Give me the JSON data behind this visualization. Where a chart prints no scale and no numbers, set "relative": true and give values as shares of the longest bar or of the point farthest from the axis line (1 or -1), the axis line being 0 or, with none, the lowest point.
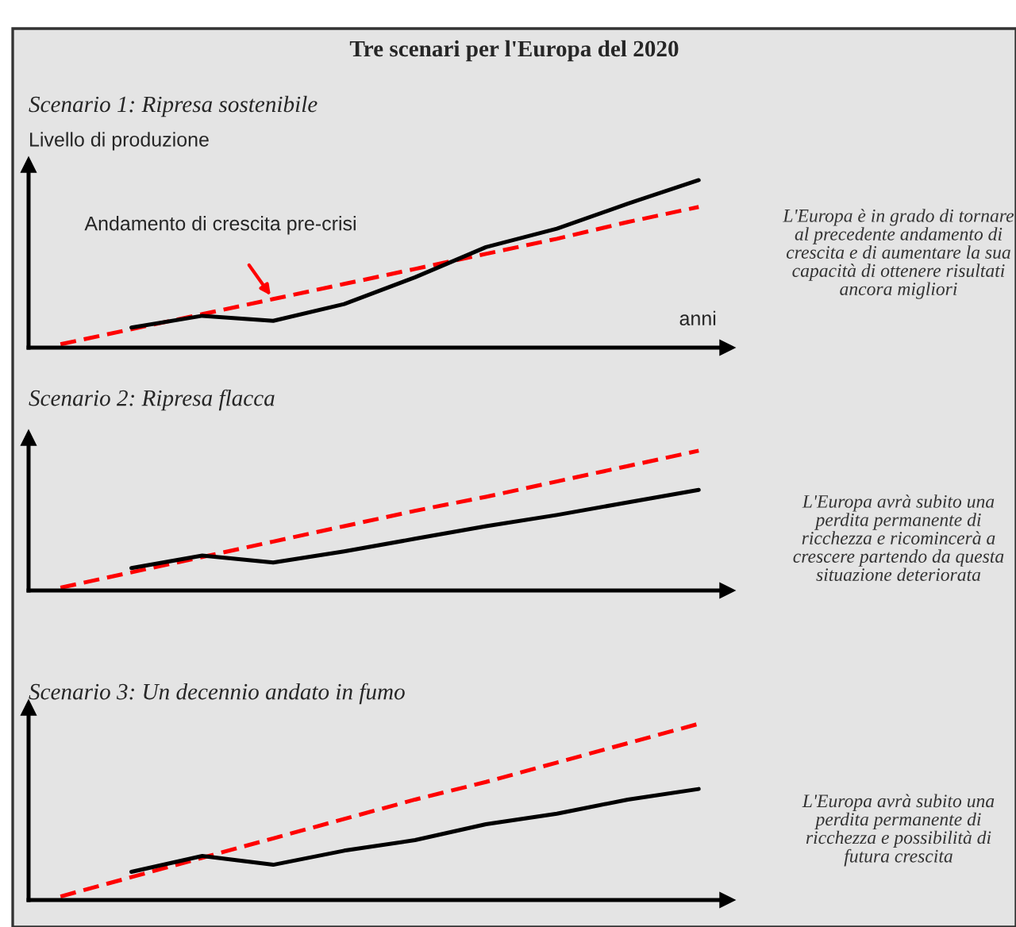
{
  "chart_data": [
    {
      "type": "line",
      "title": "Tre scenari per l'Europa del 2020",
      "subtitle": "Scenario 1: Ripresa sostenibile",
      "xlabel": "anni",
      "ylabel": "Livello di produzione",
      "relative": true,
      "legend": false,
      "grid": false,
      "marker": "none",
      "categories": [
        null,
        null,
        null,
        null,
        null,
        null,
        null,
        null,
        null,
        null
      ],
      "series": [
        {
          "color": "#ff0000",
          "line_style": "dashed",
          "values": [
            0.02,
            0.11,
            0.2,
            0.29,
            0.38,
            0.47,
            0.56,
            0.65,
            0.75,
            0.84
          ]
        },
        {
          "color": "#000000",
          "line_style": "solid",
          "values": [
            null,
            0.12,
            0.19,
            0.16,
            0.26,
            0.42,
            0.6,
            0.71,
            0.86,
            1.0
          ]
        }
      ],
      "annotations": [
        "Andamento di crescita pre-crisi",
        "L'Europa è in grado di tornare al precedente andamento di crescita e di aumentare la sua capacità di ottenere risultati ancora migliori"
      ]
    },
    {
      "type": "line",
      "subtitle": "Scenario 2: Ripresa flacca",
      "relative": true,
      "legend": false,
      "grid": false,
      "marker": "none",
      "categories": [
        null,
        null,
        null,
        null,
        null,
        null,
        null,
        null,
        null,
        null
      ],
      "series": [
        {
          "color": "#ff0000",
          "line_style": "dashed",
          "values": [
            0.02,
            0.13,
            0.24,
            0.35,
            0.46,
            0.57,
            0.67,
            0.78,
            0.89,
            1.0
          ]
        },
        {
          "color": "#000000",
          "line_style": "solid",
          "values": [
            null,
            0.16,
            0.25,
            0.2,
            0.28,
            0.37,
            0.46,
            0.54,
            0.63,
            0.72
          ]
        }
      ],
      "annotations": [
        "L'Europa avrà subito una perdita permanente di ricchezza e ricomincerà a crescere partendo da questa situazione deteriorata"
      ]
    },
    {
      "type": "line",
      "subtitle": "Scenario 3: Un decennio andato in fumo",
      "relative": true,
      "legend": false,
      "grid": false,
      "marker": "none",
      "categories": [
        null,
        null,
        null,
        null,
        null,
        null,
        null,
        null,
        null,
        null
      ],
      "series": [
        {
          "color": "#ff0000",
          "line_style": "dashed",
          "values": [
            0.02,
            0.13,
            0.24,
            0.35,
            0.46,
            0.57,
            0.67,
            0.78,
            0.89,
            1.0
          ]
        },
        {
          "color": "#000000",
          "line_style": "solid",
          "values": [
            null,
            0.16,
            0.25,
            0.2,
            0.28,
            0.34,
            0.43,
            0.49,
            0.57,
            0.63
          ]
        }
      ],
      "annotations": [
        "L'Europa avrà subito una perdita permanente di ricchezza e possibilità di futura crescita"
      ]
    }
  ]
}
